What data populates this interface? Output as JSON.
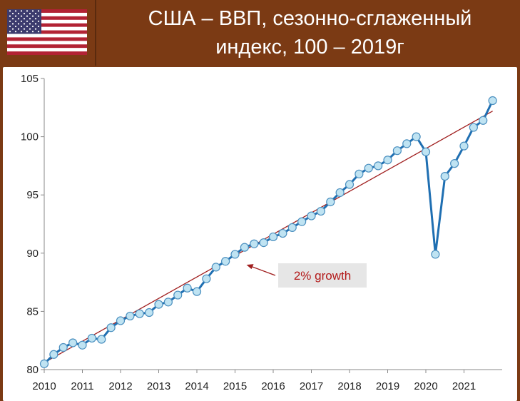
{
  "header": {
    "title_line1": "США – ВВП, сезонно-сглаженный",
    "title_line2": "индекс, 100 – 2019г",
    "flag_icon": "us-flag-icon"
  },
  "colors": {
    "background": "#7b3a14",
    "series_line": "#1f6fb2",
    "marker_fill": "#bfe3f2",
    "trend_line": "#a01f1f",
    "annotation_box": "#e6e6e6",
    "annotation_text": "#b31a1a"
  },
  "chart_data": {
    "type": "line",
    "title": "США – ВВП, сезонно-сглаженный индекс, 100 – 2019г",
    "xlabel": "",
    "ylabel": "",
    "xlim": [
      2010,
      2022
    ],
    "ylim": [
      80,
      105
    ],
    "y_ticks": [
      80,
      85,
      90,
      95,
      100,
      105
    ],
    "x_ticks": [
      "2010",
      "2011",
      "2012",
      "2013",
      "2014",
      "2015",
      "2016",
      "2017",
      "2018",
      "2019",
      "2020",
      "2021"
    ],
    "grid": false,
    "series": [
      {
        "kind": "quarterly",
        "x": [
          2010.0,
          2010.25,
          2010.5,
          2010.75,
          2011.0,
          2011.25,
          2011.5,
          2011.75,
          2012.0,
          2012.25,
          2012.5,
          2012.75,
          2013.0,
          2013.25,
          2013.5,
          2013.75,
          2014.0,
          2014.25,
          2014.5,
          2014.75,
          2015.0,
          2015.25,
          2015.5,
          2015.75,
          2016.0,
          2016.25,
          2016.5,
          2016.75,
          2017.0,
          2017.25,
          2017.5,
          2017.75,
          2018.0,
          2018.25,
          2018.5,
          2018.75,
          2019.0,
          2019.25,
          2019.5,
          2019.75,
          2020.0,
          2020.25,
          2020.5,
          2020.75,
          2021.0,
          2021.25,
          2021.5,
          2021.75
        ],
        "values": [
          80.5,
          81.3,
          81.9,
          82.3,
          82.1,
          82.7,
          82.6,
          83.6,
          84.2,
          84.6,
          84.8,
          84.9,
          85.6,
          85.8,
          86.4,
          87.0,
          86.7,
          87.8,
          88.8,
          89.3,
          89.9,
          90.5,
          90.8,
          90.9,
          91.4,
          91.7,
          92.2,
          92.7,
          93.2,
          93.6,
          94.4,
          95.2,
          95.9,
          96.8,
          97.3,
          97.5,
          98.0,
          98.8,
          99.4,
          100.0,
          98.7,
          89.9,
          96.6,
          97.7,
          99.2,
          100.8,
          101.4,
          103.1
        ]
      },
      {
        "kind": "trend",
        "x": [
          2010.0,
          2021.75
        ],
        "values": [
          80.6,
          102.2
        ]
      }
    ],
    "annotations": [
      {
        "text": "2% growth",
        "arrow_to_x": 2015.3,
        "arrow_to_y": 89.0
      }
    ]
  }
}
